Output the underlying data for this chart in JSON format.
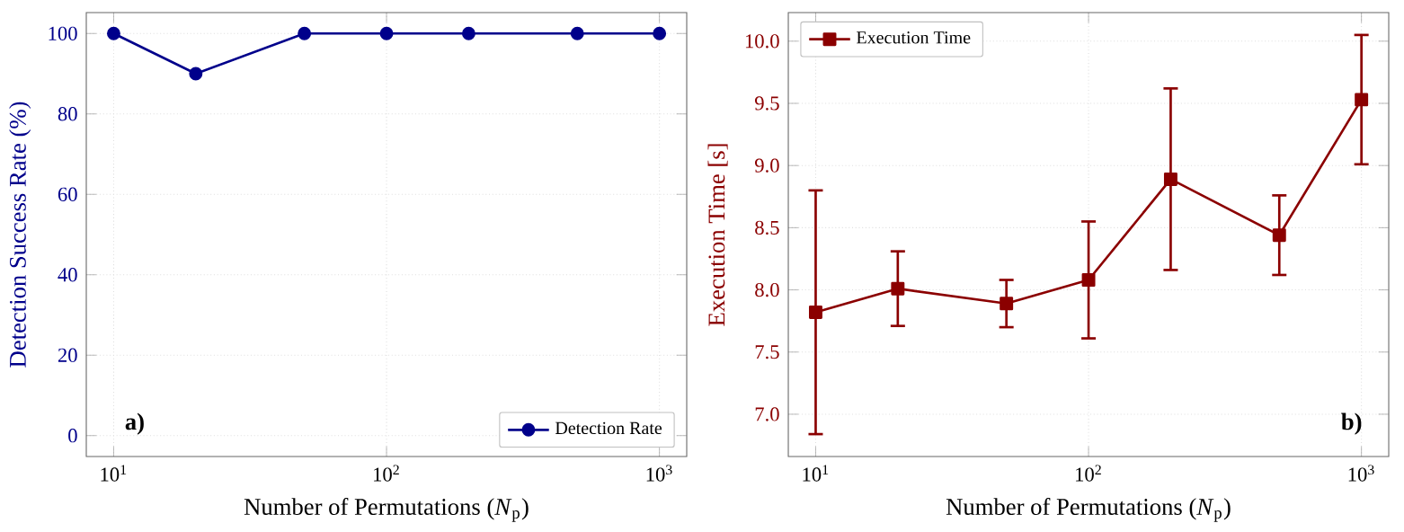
{
  "chart_data": [
    {
      "type": "line",
      "x": [
        10,
        20,
        50,
        100,
        200,
        500,
        1000
      ],
      "series": [
        {
          "name": "Detection Rate",
          "color": "#00008b",
          "values": [
            100,
            90,
            100,
            100,
            100,
            100,
            100
          ]
        }
      ],
      "xlabel": "Number of Permutations (*N*$_{p}$)",
      "ylabel": "Detection Success Rate (%)",
      "xlim": [
        7.94,
        1259
      ],
      "ylim": [
        -5.2,
        105.2
      ],
      "xticks": [
        {
          "value": 10,
          "label": "10$^{1}$"
        },
        {
          "value": 100,
          "label": "10$^{2}$"
        },
        {
          "value": 1000,
          "label": "10$^{3}$"
        }
      ],
      "yticks": [
        0,
        20,
        40,
        60,
        80,
        100
      ],
      "log": "x",
      "grid": true,
      "legend": "bottom right",
      "marker": "circle",
      "annotations": [
        "a)"
      ]
    },
    {
      "type": "line",
      "x": [
        10,
        20,
        50,
        100,
        200,
        500,
        1000
      ],
      "series": [
        {
          "name": "Execution Time",
          "color": "#8b0000",
          "values": [
            7.82,
            8.01,
            7.89,
            8.08,
            8.89,
            8.44,
            9.53
          ],
          "errors": [
            0.98,
            0.3,
            0.19,
            0.47,
            0.73,
            0.32,
            0.52
          ]
        }
      ],
      "xlabel": "Number of Permutations (*N*$_{p}$)",
      "ylabel": "Execution Time [s]",
      "xlim": [
        7.94,
        1259
      ],
      "ylim": [
        6.66,
        10.23
      ],
      "xticks": [
        {
          "value": 10,
          "label": "10$^{1}$"
        },
        {
          "value": 100,
          "label": "10$^{2}$"
        },
        {
          "value": 1000,
          "label": "10$^{3}$"
        }
      ],
      "yticks": [
        {
          "value": 7,
          "label": "7.0"
        },
        {
          "value": 7.5,
          "label": "7.5"
        },
        {
          "value": 8,
          "label": "8.0"
        },
        {
          "value": 8.5,
          "label": "8.5"
        },
        {
          "value": 9,
          "label": "9.0"
        },
        {
          "value": 9.5,
          "label": "9.5"
        },
        {
          "value": 10,
          "label": "10.0"
        }
      ],
      "log": "x",
      "grid": true,
      "legend": "top left",
      "marker": "square",
      "annotations": [
        "b)"
      ]
    }
  ]
}
